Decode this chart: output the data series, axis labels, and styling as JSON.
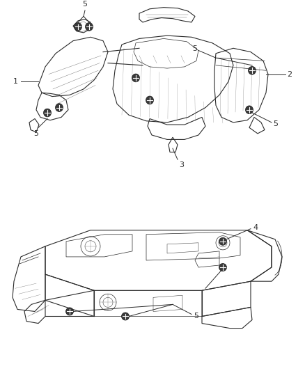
{
  "bg_color": "#ffffff",
  "line_color": "#2a2a2a",
  "label_color": "#1a1a1a",
  "bolt_color": "#333333",
  "figsize": [
    4.38,
    5.33
  ],
  "dpi": 100
}
